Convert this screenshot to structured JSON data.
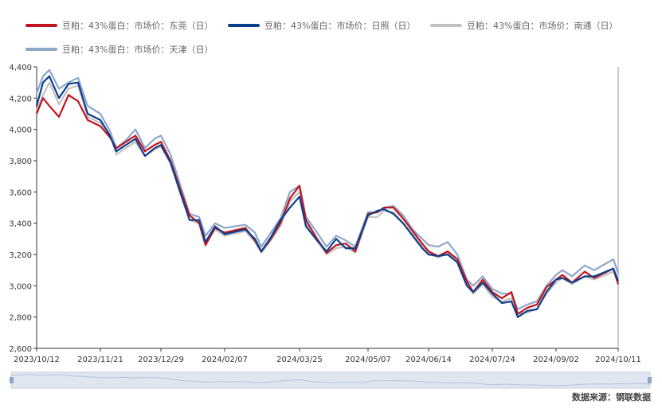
{
  "legend": [
    {
      "label": "豆粕：43%蛋白：市场价：东莞（日）",
      "color": "#c0141f"
    },
    {
      "label": "豆粕：43%蛋白：市场价：日照（日）",
      "color": "#0d3e8c"
    },
    {
      "label": "豆粕：43%蛋白：市场价：南通（日）",
      "color": "#c2c2c2"
    },
    {
      "label": "豆粕：43%蛋白：市场价：天津（日）",
      "color": "#8da6ca"
    }
  ],
  "source_label": "数据来源：钢联数据",
  "chart_data": {
    "type": "line",
    "title": "",
    "xlabel": "",
    "ylabel": "",
    "ylim": [
      2600,
      4400
    ],
    "yticks": [
      2600,
      2800,
      3000,
      3200,
      3400,
      3600,
      3800,
      4000,
      4200,
      4400
    ],
    "ytick_labels": [
      "2,600",
      "2,800",
      "3,000",
      "3,200",
      "3,400",
      "3,600",
      "3,800",
      "4,000",
      "4,200",
      "4,400"
    ],
    "xtick_labels": [
      "2023/10/12",
      "2023/11/21",
      "2023/12/29",
      "2024/02/07",
      "2024/03/25",
      "2024/05/07",
      "2024/06/14",
      "2024/07/24",
      "2024/09/02",
      "2024/10/11"
    ],
    "x": [
      "2023/10/12",
      "2023/10/16",
      "2023/10/20",
      "2023/10/26",
      "2023/11/01",
      "2023/11/07",
      "2023/11/13",
      "2023/11/21",
      "2023/11/27",
      "2023/12/01",
      "2023/12/07",
      "2023/12/13",
      "2023/12/19",
      "2023/12/25",
      "2023/12/29",
      "2024/01/04",
      "2024/01/10",
      "2024/01/16",
      "2024/01/22",
      "2024/01/26",
      "2024/02/01",
      "2024/02/07",
      "2024/02/20",
      "2024/02/26",
      "2024/03/01",
      "2024/03/07",
      "2024/03/13",
      "2024/03/19",
      "2024/03/25",
      "2024/03/29",
      "2024/04/05",
      "2024/04/11",
      "2024/04/17",
      "2024/04/23",
      "2024/04/29",
      "2024/05/07",
      "2024/05/13",
      "2024/05/17",
      "2024/05/23",
      "2024/05/29",
      "2024/06/04",
      "2024/06/10",
      "2024/06/14",
      "2024/06/20",
      "2024/06/26",
      "2024/07/02",
      "2024/07/08",
      "2024/07/12",
      "2024/07/18",
      "2024/07/24",
      "2024/07/30",
      "2024/08/05",
      "2024/08/09",
      "2024/08/15",
      "2024/08/21",
      "2024/08/27",
      "2024/09/02",
      "2024/09/06",
      "2024/09/12",
      "2024/09/20",
      "2024/09/26",
      "2024/10/08",
      "2024/10/11"
    ],
    "series": [
      {
        "name": "豆粕：43%蛋白：市场价：东莞（日）",
        "color": "#c0141f",
        "values": [
          4100,
          4200,
          4150,
          4080,
          4220,
          4180,
          4060,
          4020,
          3950,
          3880,
          3920,
          3960,
          3860,
          3900,
          3920,
          3800,
          3620,
          3450,
          3400,
          3260,
          3370,
          3340,
          3370,
          3290,
          3220,
          3300,
          3400,
          3560,
          3640,
          3420,
          3300,
          3210,
          3260,
          3270,
          3220,
          3460,
          3470,
          3500,
          3500,
          3430,
          3350,
          3270,
          3220,
          3190,
          3220,
          3170,
          3030,
          2960,
          3040,
          2960,
          2920,
          2960,
          2820,
          2860,
          2880,
          2990,
          3040,
          3070,
          3020,
          3090,
          3050,
          3110,
          3010
        ]
      },
      {
        "name": "豆粕：43%蛋白：市场价：日照（日）",
        "color": "#0d3e8c",
        "values": [
          4150,
          4300,
          4340,
          4200,
          4290,
          4300,
          4100,
          4060,
          3960,
          3860,
          3900,
          3940,
          3830,
          3880,
          3900,
          3790,
          3600,
          3420,
          3420,
          3280,
          3380,
          3330,
          3360,
          3300,
          3220,
          3310,
          3420,
          3500,
          3570,
          3380,
          3290,
          3220,
          3300,
          3240,
          3240,
          3450,
          3480,
          3490,
          3460,
          3400,
          3320,
          3240,
          3200,
          3190,
          3200,
          3150,
          3000,
          2960,
          3020,
          2950,
          2890,
          2900,
          2800,
          2840,
          2850,
          2960,
          3040,
          3050,
          3020,
          3060,
          3060,
          3110,
          3030
        ]
      },
      {
        "name": "豆粕：43%蛋白：市场价：南通（日）",
        "color": "#c2c2c2",
        "values": [
          4120,
          4220,
          4300,
          4160,
          4260,
          4280,
          4080,
          4040,
          3970,
          3840,
          3880,
          3920,
          3830,
          3870,
          3890,
          3780,
          3600,
          3420,
          3400,
          3280,
          3360,
          3320,
          3350,
          3280,
          3210,
          3290,
          3380,
          3540,
          3600,
          3400,
          3290,
          3200,
          3240,
          3250,
          3210,
          3440,
          3440,
          3480,
          3470,
          3400,
          3330,
          3250,
          3210,
          3180,
          3210,
          3150,
          3010,
          2950,
          3010,
          2930,
          2900,
          2920,
          2820,
          2830,
          2850,
          2950,
          3020,
          3050,
          3010,
          3060,
          3040,
          3090,
          3020
        ]
      },
      {
        "name": "豆粕：43%蛋白：市场价：天津（日）",
        "color": "#8da6ca",
        "values": [
          4230,
          4340,
          4380,
          4260,
          4300,
          4330,
          4150,
          4100,
          3990,
          3880,
          3930,
          4000,
          3880,
          3940,
          3960,
          3840,
          3650,
          3460,
          3440,
          3320,
          3400,
          3370,
          3390,
          3340,
          3250,
          3340,
          3430,
          3600,
          3640,
          3440,
          3340,
          3250,
          3320,
          3290,
          3250,
          3470,
          3470,
          3500,
          3510,
          3450,
          3360,
          3300,
          3260,
          3250,
          3280,
          3200,
          3040,
          3000,
          3060,
          2980,
          2950,
          2950,
          2850,
          2880,
          2900,
          3000,
          3070,
          3100,
          3060,
          3130,
          3100,
          3170,
          3080
        ]
      }
    ],
    "grid": false,
    "legend_position": "top"
  }
}
